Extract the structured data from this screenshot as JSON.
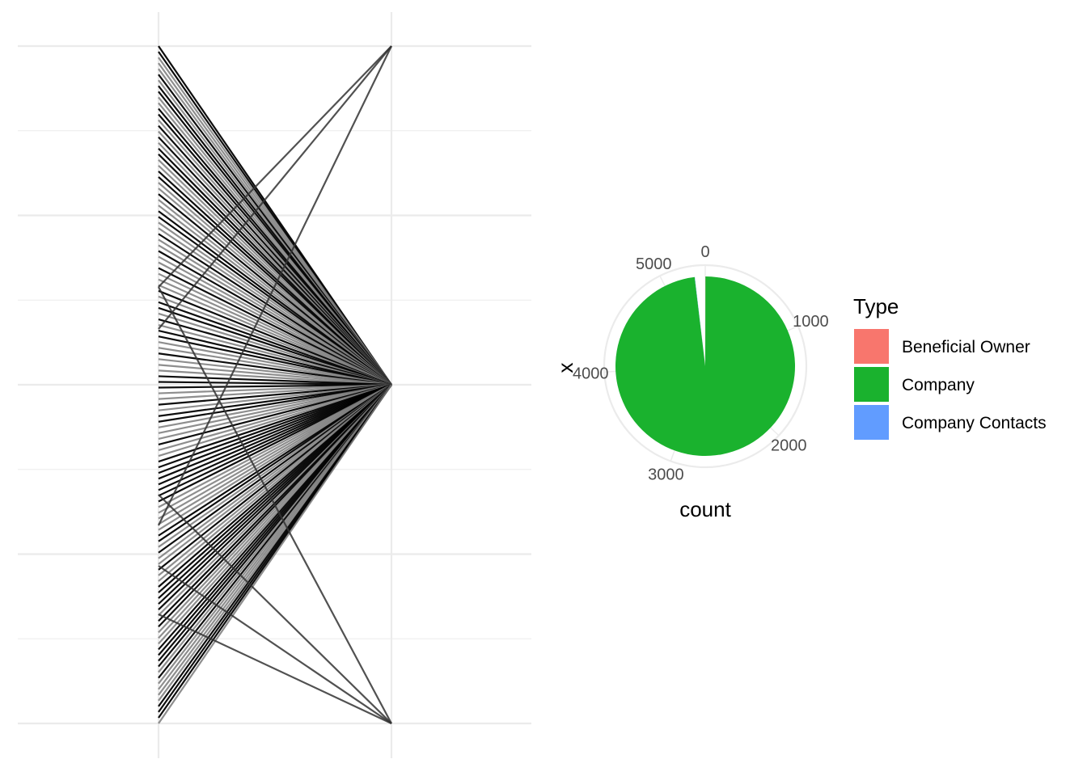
{
  "chart_data": [
    {
      "type": "network",
      "node_count": 3,
      "edge_count": 120,
      "grid": true
    },
    {
      "type": "pie",
      "xlabel": "x",
      "ylabel": "count",
      "theta_ticks": [
        "0",
        "1000",
        "2000",
        "3000",
        "4000",
        "5000"
      ],
      "theta_max": 5400,
      "total": 5300,
      "slices": [
        {
          "name": "Beneficial Owner",
          "value": 2,
          "color": "#F8766D"
        },
        {
          "name": "Company",
          "value": 5296,
          "color": "#1AB22E"
        },
        {
          "name": "Company Contacts",
          "value": 2,
          "color": "#619CFF"
        }
      ],
      "grid": true,
      "legend": {
        "title": "Type",
        "position": "right",
        "items": [
          {
            "label": "Beneficial Owner",
            "color": "#F8766D"
          },
          {
            "label": "Company",
            "color": "#1AB22E"
          },
          {
            "label": "Company Contacts",
            "color": "#619CFF"
          }
        ]
      }
    }
  ]
}
